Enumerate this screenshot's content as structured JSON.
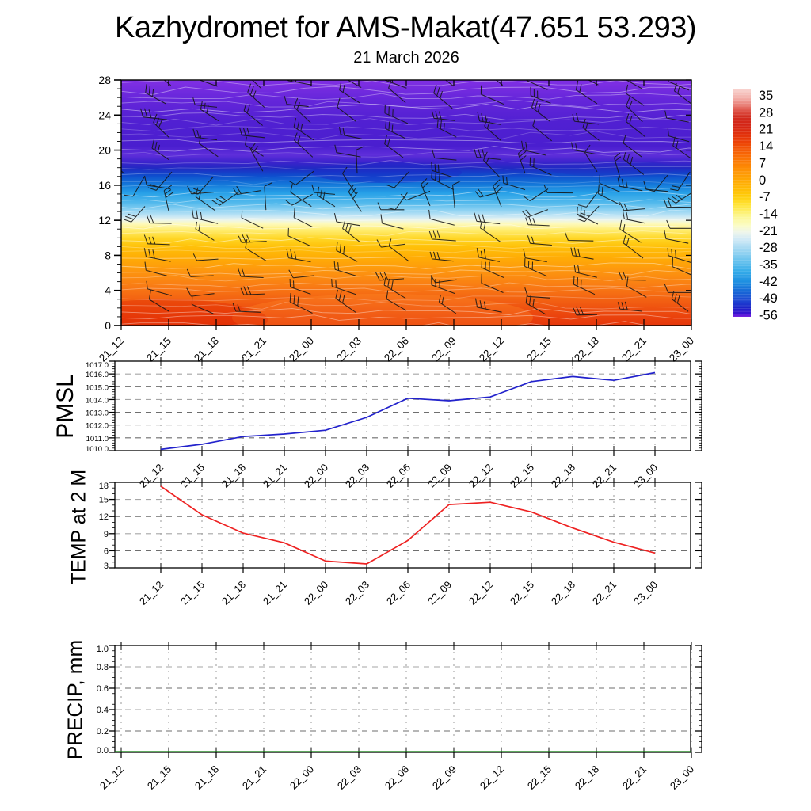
{
  "title": "Kazhydromet for AMS-Makat(47.651 53.293)",
  "subtitle": "21 March 2026",
  "time_labels": [
    "21_12",
    "21_15",
    "21_18",
    "21_21",
    "22_00",
    "22_03",
    "22_06",
    "22_09",
    "22_12",
    "22_15",
    "22_18",
    "22_21",
    "23_00"
  ],
  "panels": {
    "pmsl": {
      "label": "PMSL"
    },
    "temp": {
      "label": "TEMP at 2 M"
    },
    "precip": {
      "label": "PRECIP, mm"
    }
  },
  "colorbar": {
    "labels": [
      "35",
      "28",
      "21",
      "14",
      "7",
      "0",
      "-7",
      "-14",
      "-21",
      "-28",
      "-35",
      "-42",
      "-49",
      "-56"
    ],
    "gradient_stops": [
      [
        0,
        "#f8d2ce"
      ],
      [
        4,
        "#f2aca6"
      ],
      [
        8,
        "#e4695f"
      ],
      [
        12,
        "#d22d20"
      ],
      [
        16,
        "#d42414"
      ],
      [
        22,
        "#e93a07"
      ],
      [
        29,
        "#f96b05"
      ],
      [
        36,
        "#fe9404"
      ],
      [
        42,
        "#ffb203"
      ],
      [
        47,
        "#ffcd0a"
      ],
      [
        51,
        "#ffe53a"
      ],
      [
        56,
        "#fcf795"
      ],
      [
        60,
        "#fbfcc8"
      ],
      [
        63,
        "#edf5ec"
      ],
      [
        66,
        "#cfe9f6"
      ],
      [
        70,
        "#a5d9f2"
      ],
      [
        75,
        "#6cc4ee"
      ],
      [
        80,
        "#35ace9"
      ],
      [
        85,
        "#1b8ce0"
      ],
      [
        89,
        "#1767d6"
      ],
      [
        93,
        "#1e45d2"
      ],
      [
        96,
        "#1b24c8"
      ],
      [
        98.5,
        "#3912cf"
      ],
      [
        100,
        "#7a22e0"
      ]
    ]
  },
  "chart_data": [
    {
      "id": "cross_section",
      "type": "heatmap",
      "title": "21 March 2026",
      "description": "time-height temperature shading with wind barbs and white contour lines",
      "x_categories": [
        "21_12",
        "21_15",
        "21_18",
        "21_21",
        "22_00",
        "22_03",
        "22_06",
        "22_09",
        "22_12",
        "22_15",
        "22_18",
        "22_21",
        "23_00"
      ],
      "ylim": [
        0,
        28
      ],
      "ytick_labels": [
        "0",
        "4",
        "8",
        "12",
        "16",
        "20",
        "24",
        "28"
      ],
      "colorbar_ticks": [
        35,
        28,
        21,
        14,
        7,
        0,
        -7,
        -14,
        -21,
        -28,
        -35,
        -42,
        -49,
        -56
      ],
      "gradient_stops": [
        [
          0,
          "#8130e4"
        ],
        [
          8,
          "#6526da"
        ],
        [
          17,
          "#5120d2"
        ],
        [
          27,
          "#4a1ecf"
        ],
        [
          30.5,
          "#5f2eda"
        ],
        [
          33.5,
          "#3b22cc"
        ],
        [
          36,
          "#202ac2"
        ],
        [
          39,
          "#0e4ecd"
        ],
        [
          42.5,
          "#1478d9"
        ],
        [
          46,
          "#27a0e7"
        ],
        [
          50,
          "#52b9ec"
        ],
        [
          53,
          "#8ed2f2"
        ],
        [
          55.5,
          "#c6e7f5"
        ],
        [
          57,
          "#ecf5ec"
        ],
        [
          58.5,
          "#fdfabe"
        ],
        [
          61,
          "#ffee74"
        ],
        [
          64.5,
          "#ffd625"
        ],
        [
          68,
          "#ffc008"
        ],
        [
          73,
          "#ffaa06"
        ],
        [
          78,
          "#fd950f"
        ],
        [
          84,
          "#f97b14"
        ],
        [
          90,
          "#f25f12"
        ],
        [
          95,
          "#ec480e"
        ],
        [
          100,
          "#e6360b"
        ]
      ],
      "wind_barbs": {
        "columns": 13,
        "rows": 14,
        "color": "#151515"
      },
      "contours": {
        "color": "#ffffff",
        "count": 38
      }
    },
    {
      "id": "pmsl",
      "type": "line",
      "ylabel": "PMSL",
      "color": "#2222cc",
      "ylim": [
        1010,
        1017
      ],
      "ytick_labels": [
        "1010.0",
        "1011.0",
        "1012.0",
        "1013.0",
        "1014.0",
        "1015.0",
        "1016.0",
        "1017.0"
      ],
      "x": [
        "21_12",
        "21_15",
        "21_18",
        "21_21",
        "22_00",
        "22_03",
        "22_06",
        "22_09",
        "22_12",
        "22_15",
        "22_18",
        "22_21",
        "23_00"
      ],
      "values": [
        1010.1,
        1010.5,
        1011.1,
        1011.3,
        1011.6,
        1012.6,
        1014.1,
        1013.9,
        1014.2,
        1015.4,
        1015.8,
        1015.5,
        1016.1
      ]
    },
    {
      "id": "temp",
      "type": "line",
      "ylabel": "TEMP at 2 M",
      "color": "#ee2222",
      "ylim": [
        3,
        18
      ],
      "ytick_labels": [
        "3",
        "6",
        "9",
        "12",
        "15",
        "18"
      ],
      "x": [
        "21_12",
        "21_15",
        "21_18",
        "21_21",
        "22_00",
        "22_03",
        "22_06",
        "22_09",
        "22_12",
        "22_15",
        "22_18",
        "22_21",
        "23_00"
      ],
      "values": [
        17.3,
        12.3,
        9.1,
        7.4,
        4.2,
        3.7,
        7.8,
        14.1,
        14.5,
        12.8,
        10.0,
        7.5,
        5.6
      ]
    },
    {
      "id": "precip",
      "type": "line",
      "ylabel": "PRECIP, mm",
      "color": "#007700",
      "ylim": [
        0,
        1
      ],
      "ytick_labels": [
        "0.0",
        "0.2",
        "0.4",
        "0.6",
        "0.8",
        "1.0"
      ],
      "x": [
        "21_12",
        "21_15",
        "21_18",
        "21_21",
        "22_00",
        "22_03",
        "22_06",
        "22_09",
        "22_12",
        "22_15",
        "22_18",
        "22_21",
        "23_00"
      ],
      "values": [
        0,
        0,
        0,
        0,
        0,
        0,
        0,
        0,
        0,
        0,
        0,
        0,
        0
      ]
    }
  ]
}
